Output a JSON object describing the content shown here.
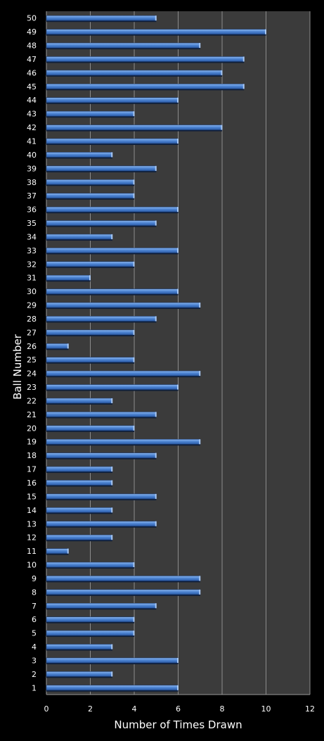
{
  "chart_data": {
    "type": "bar",
    "orientation": "horizontal",
    "categories": [
      "1",
      "2",
      "3",
      "4",
      "5",
      "6",
      "7",
      "8",
      "9",
      "10",
      "11",
      "12",
      "13",
      "14",
      "15",
      "16",
      "17",
      "18",
      "19",
      "20",
      "21",
      "22",
      "23",
      "24",
      "25",
      "26",
      "27",
      "28",
      "29",
      "30",
      "31",
      "32",
      "33",
      "34",
      "35",
      "36",
      "37",
      "38",
      "39",
      "40",
      "41",
      "42",
      "43",
      "44",
      "45",
      "46",
      "47",
      "48",
      "49",
      "50"
    ],
    "values": [
      6,
      3,
      6,
      3,
      4,
      4,
      5,
      7,
      7,
      4,
      1,
      3,
      5,
      3,
      5,
      3,
      3,
      5,
      7,
      4,
      5,
      3,
      6,
      7,
      4,
      1,
      4,
      5,
      7,
      6,
      2,
      4,
      6,
      3,
      5,
      6,
      4,
      4,
      5,
      3,
      6,
      8,
      4,
      6,
      9,
      8,
      9,
      7,
      10,
      5
    ],
    "xlabel": "Number of Times Drawn",
    "ylabel": "Ball Number",
    "xlim": [
      0,
      12
    ],
    "xticks": [
      "0",
      "2",
      "4",
      "6",
      "8",
      "10",
      "12"
    ],
    "grid": true,
    "colors": {
      "background": "#000000",
      "plot_area": "#3b3b3b",
      "gridline": "#8c8c8c",
      "bar_light": "#8db7ee",
      "bar_mid": "#4f86d4",
      "bar_dark": "#2a5aa6",
      "text": "#ffffff"
    }
  }
}
